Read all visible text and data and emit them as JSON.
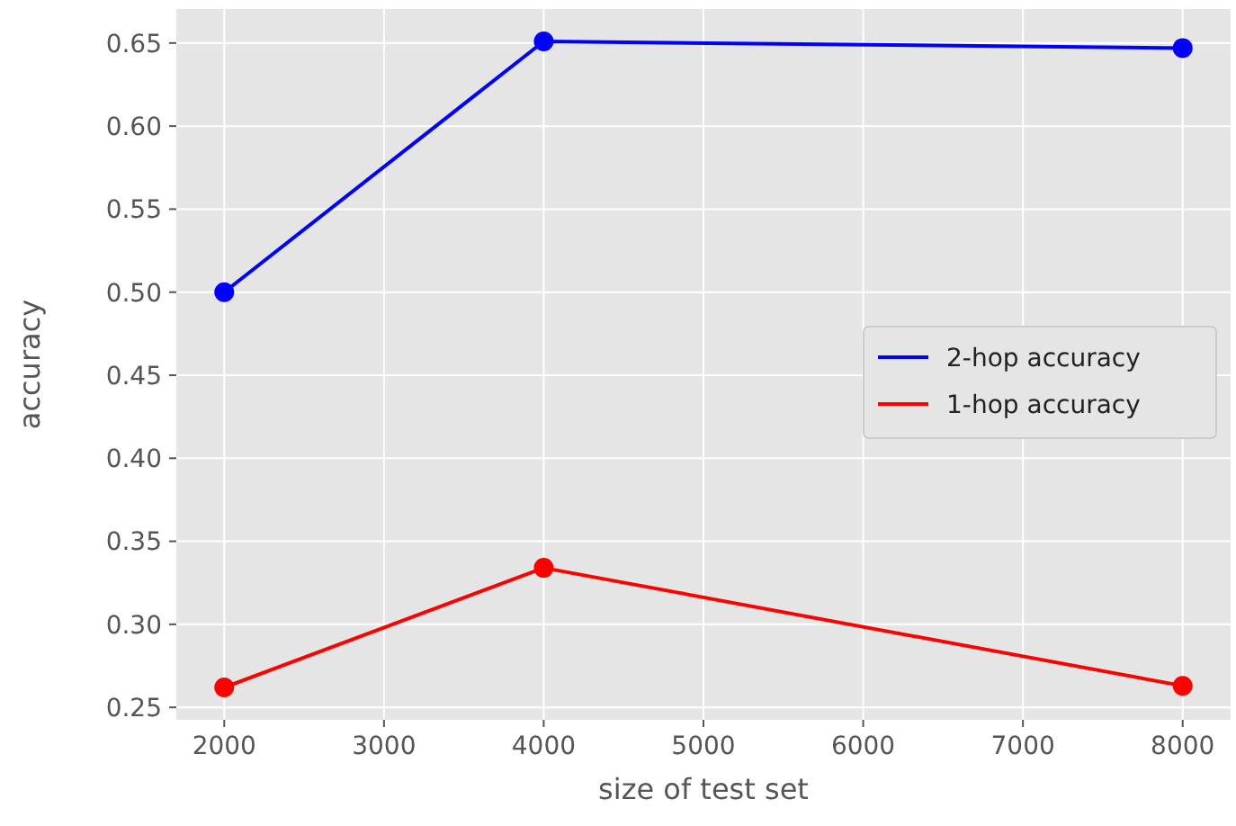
{
  "chart_data": {
    "type": "line",
    "xlabel": "size of test set",
    "ylabel": "accuracy",
    "x": [
      2000,
      4000,
      8000
    ],
    "series": [
      {
        "name": "2-hop accuracy",
        "color": "#0000ff",
        "values": [
          0.5,
          0.651,
          0.647
        ]
      },
      {
        "name": "1-hop accuracy",
        "color": "#ff0000",
        "values": [
          0.262,
          0.334,
          0.263
        ]
      }
    ],
    "xlim": [
      1700,
      8300
    ],
    "xticks": [
      2000,
      3000,
      4000,
      5000,
      6000,
      7000,
      8000
    ],
    "ylim": [
      0.2425,
      0.6705
    ],
    "yticks": [
      0.25,
      {
        "value": 0.3,
        "label": "0.30"
      },
      0.35,
      {
        "value": 0.4,
        "label": "0.40"
      },
      0.45,
      {
        "value": 0.5,
        "label": "0.50"
      },
      0.55,
      {
        "value": 0.6,
        "label": "0.60"
      },
      0.65
    ],
    "grid": true,
    "legend": "right",
    "marker": "circle",
    "line_style": "solid"
  }
}
